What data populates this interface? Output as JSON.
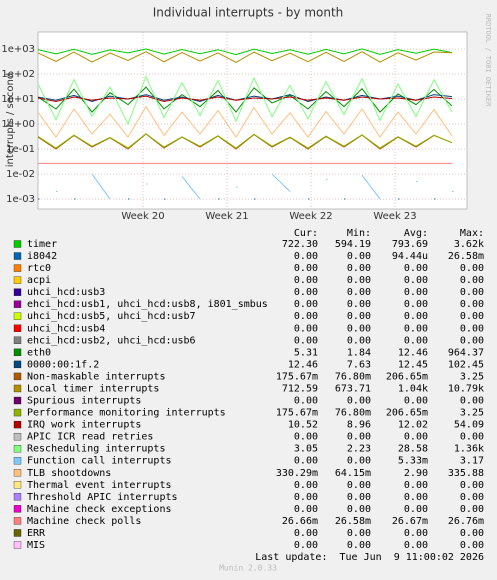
{
  "chart_data": {
    "type": "line",
    "title": "Individual interrupts - by month",
    "y_label": "interrupts / second",
    "watermark": "RRDTOOL / TOBI OETIKER",
    "log_y": true,
    "grid": true,
    "x": [
      0,
      1.5,
      3,
      4.5,
      6,
      7.5,
      9,
      10.5,
      12,
      13.5,
      15,
      16.5,
      18,
      19.5,
      21,
      22.5,
      24,
      25.5,
      27,
      28.5,
      30,
      31.5,
      33,
      34.5
    ],
    "xlim": [
      0,
      35.75
    ],
    "xticks": [
      {
        "value": 8.75,
        "label": "Week 20"
      },
      {
        "value": 15.75,
        "label": "Week 21"
      },
      {
        "value": 22.75,
        "label": "Week 22"
      },
      {
        "value": 29.75,
        "label": "Week 23"
      }
    ],
    "ylim": [
      0.0004,
      4800
    ],
    "yticks": [
      {
        "value": 0.001,
        "label": "1e-03"
      },
      {
        "value": 0.01,
        "label": "1e-02"
      },
      {
        "value": 0.1,
        "label": "1e-01"
      },
      {
        "value": 1,
        "label": "1e+00"
      },
      {
        "value": 10,
        "label": "1e+01"
      },
      {
        "value": 100,
        "label": "1e+02"
      },
      {
        "value": 1000,
        "label": "1e+03"
      }
    ],
    "stats_header": [
      "Cur:",
      "Min:",
      "Avg:",
      "Max:"
    ],
    "series": [
      {
        "name": "timer",
        "color": "#00CC00",
        "stats": [
          "722.30",
          "594.19",
          "793.69",
          "3.62k"
        ],
        "values": [
          950,
          640,
          980,
          610,
          920,
          700,
          1000,
          630,
          960,
          650,
          940,
          600,
          990,
          660,
          930,
          620,
          970,
          640,
          1010,
          610,
          950,
          680,
          990,
          720
        ]
      },
      {
        "name": "i8042",
        "color": "#0066B3",
        "stats": [
          "0.00",
          "0.00",
          "94.44u",
          "26.58m"
        ],
        "values": [
          0.001,
          null,
          0.001,
          null,
          null,
          0.001,
          null,
          0.001,
          null,
          null,
          0.001,
          null,
          0.001,
          null,
          null,
          0.001,
          null,
          0.001,
          null,
          null,
          0.001,
          null,
          0.001,
          null
        ]
      },
      {
        "name": "rtc0",
        "color": "#FF8000",
        "stats": [
          "0.00",
          "0.00",
          "0.00",
          "0.00"
        ]
      },
      {
        "name": "acpi",
        "color": "#FFCC00",
        "stats": [
          "0.00",
          "0.00",
          "0.00",
          "0.00"
        ]
      },
      {
        "name": "uhci_hcd:usb3",
        "color": "#330099",
        "stats": [
          "0.00",
          "0.00",
          "0.00",
          "0.00"
        ]
      },
      {
        "name": "ehci_hcd:usb1, uhci_hcd:usb8, i801_smbus",
        "color": "#990099",
        "stats": [
          "0.00",
          "0.00",
          "0.00",
          "0.00"
        ]
      },
      {
        "name": "uhci_hcd:usb5, uhci_hcd:usb7",
        "color": "#CCFF00",
        "stats": [
          "0.00",
          "0.00",
          "0.00",
          "0.00"
        ]
      },
      {
        "name": "uhci_hcd:usb4",
        "color": "#FF0000",
        "stats": [
          "0.00",
          "0.00",
          "0.00",
          "0.00"
        ]
      },
      {
        "name": "ehci_hcd:usb2, uhci_hcd:usb6",
        "color": "#808080",
        "stats": [
          "0.00",
          "0.00",
          "0.00",
          "0.00"
        ]
      },
      {
        "name": "eth0",
        "color": "#008F00",
        "stats": [
          "5.31",
          "1.84",
          "12.46",
          "964.37"
        ],
        "values": [
          12,
          4,
          25,
          3,
          18,
          6,
          30,
          4,
          15,
          5,
          22,
          3,
          28,
          7,
          14,
          4,
          20,
          5,
          26,
          3,
          16,
          6,
          24,
          5.3
        ]
      },
      {
        "name": "0000:00:1f.2",
        "color": "#00487D",
        "stats": [
          "12.46",
          "7.63",
          "12.45",
          "102.45"
        ],
        "values": [
          12,
          9,
          14,
          8,
          13,
          10,
          15,
          9,
          12,
          8,
          14,
          9,
          13,
          10,
          15,
          8,
          12,
          9,
          14,
          10,
          13,
          9,
          15,
          12.5
        ]
      },
      {
        "name": "Non-maskable interrupts",
        "color": "#B35A00",
        "stats": [
          "175.67m",
          "76.80m",
          "206.65m",
          "3.25"
        ],
        "values": [
          0.3,
          0.1,
          0.35,
          0.12,
          0.28,
          0.1,
          0.4,
          0.11,
          0.3,
          0.12,
          0.33,
          0.1,
          0.38,
          0.12,
          0.29,
          0.1,
          0.32,
          0.12,
          0.36,
          0.1,
          0.3,
          0.12,
          0.35,
          0.18
        ]
      },
      {
        "name": "Local timer interrupts",
        "color": "#B38F00",
        "stats": [
          "712.59",
          "673.71",
          "1.04k",
          "10.79k"
        ],
        "values": [
          700,
          320,
          760,
          300,
          690,
          350,
          780,
          310,
          720,
          330,
          700,
          290,
          760,
          340,
          680,
          310,
          740,
          320,
          780,
          300,
          710,
          360,
          760,
          710
        ]
      },
      {
        "name": "Spurious interrupts",
        "color": "#6B006B",
        "stats": [
          "0.00",
          "0.00",
          "0.00",
          "0.00"
        ]
      },
      {
        "name": "Performance monitoring interrupts",
        "color": "#8FB300",
        "stats": [
          "175.67m",
          "76.80m",
          "206.65m",
          "3.25"
        ],
        "values": [
          0.32,
          0.11,
          0.36,
          0.13,
          0.29,
          0.11,
          0.41,
          0.12,
          0.31,
          0.13,
          0.34,
          0.11,
          0.39,
          0.13,
          0.3,
          0.11,
          0.33,
          0.13,
          0.37,
          0.11,
          0.31,
          0.13,
          0.36,
          0.18
        ]
      },
      {
        "name": "IRQ work interrupts",
        "color": "#B30000",
        "stats": [
          "10.52",
          "8.96",
          "12.02",
          "54.09"
        ],
        "values": [
          11,
          8,
          12,
          9,
          11,
          10,
          13,
          8,
          11,
          9,
          12,
          9,
          11,
          10,
          12,
          9,
          11,
          9,
          12,
          10,
          11,
          9,
          12,
          10.5
        ]
      },
      {
        "name": "APIC ICR read retries",
        "color": "#BEBEBE",
        "stats": [
          "0.00",
          "0.00",
          "0.00",
          "0.00"
        ]
      },
      {
        "name": "Rescheduling interrupts",
        "color": "#80FF80",
        "stats": [
          "3.05",
          "2.23",
          "28.58",
          "1.36k"
        ],
        "values": [
          40,
          1.5,
          60,
          2,
          30,
          1,
          80,
          1.8,
          45,
          2.2,
          55,
          1.3,
          70,
          2,
          35,
          1.6,
          50,
          2.4,
          65,
          1.4,
          40,
          2,
          60,
          3
        ]
      },
      {
        "name": "Function call interrupts",
        "color": "#80C9FF",
        "stats": [
          "0.00",
          "0.00",
          "5.33m",
          "3.17"
        ],
        "values": [
          null,
          0.002,
          null,
          0.01,
          0.001,
          null,
          0.004,
          null,
          0.008,
          0.001,
          null,
          0.003,
          null,
          0.01,
          0.002,
          null,
          0.006,
          null,
          0.009,
          0.001,
          null,
          0.005,
          null,
          0.002
        ]
      },
      {
        "name": "TLB shootdowns",
        "color": "#FFC080",
        "stats": [
          "330.29m",
          "64.15m",
          "2.90",
          "335.88"
        ],
        "values": [
          3,
          0.3,
          4,
          0.4,
          2.5,
          0.3,
          5,
          0.35,
          3,
          0.4,
          3.5,
          0.3,
          4.5,
          0.4,
          2.8,
          0.3,
          3.2,
          0.4,
          4,
          0.3,
          3,
          0.4,
          3.8,
          0.33
        ]
      },
      {
        "name": "Thermal event interrupts",
        "color": "#FFE680",
        "stats": [
          "0.00",
          "0.00",
          "0.00",
          "0.00"
        ]
      },
      {
        "name": "Threshold APIC interrupts",
        "color": "#AA80FF",
        "stats": [
          "0.00",
          "0.00",
          "0.00",
          "0.00"
        ]
      },
      {
        "name": "Machine check exceptions",
        "color": "#EE00CC",
        "stats": [
          "0.00",
          "0.00",
          "0.00",
          "0.00"
        ]
      },
      {
        "name": "Machine check polls",
        "color": "#FF8080",
        "stats": [
          "26.66m",
          "26.58m",
          "26.67m",
          "26.76m"
        ],
        "values": [
          0.0267,
          0.0267,
          0.0267,
          0.0267,
          0.0267,
          0.0267,
          0.0267,
          0.0267,
          0.0267,
          0.0267,
          0.0267,
          0.0267,
          0.0267,
          0.0267,
          0.0267,
          0.0267,
          0.0267,
          0.0267,
          0.0267,
          0.0267,
          0.0267,
          0.0267,
          0.0267,
          0.0267
        ]
      },
      {
        "name": "ERR",
        "color": "#666600",
        "stats": [
          "0.00",
          "0.00",
          "0.00",
          "0.00"
        ]
      },
      {
        "name": "MIS",
        "color": "#FFBFFF",
        "stats": [
          "0.00",
          "0.00",
          "0.00",
          "0.00"
        ]
      }
    ],
    "last_update": "Last update:  Tue Jun  9 11:00:02 2026",
    "footer": "Munin 2.0.33"
  }
}
